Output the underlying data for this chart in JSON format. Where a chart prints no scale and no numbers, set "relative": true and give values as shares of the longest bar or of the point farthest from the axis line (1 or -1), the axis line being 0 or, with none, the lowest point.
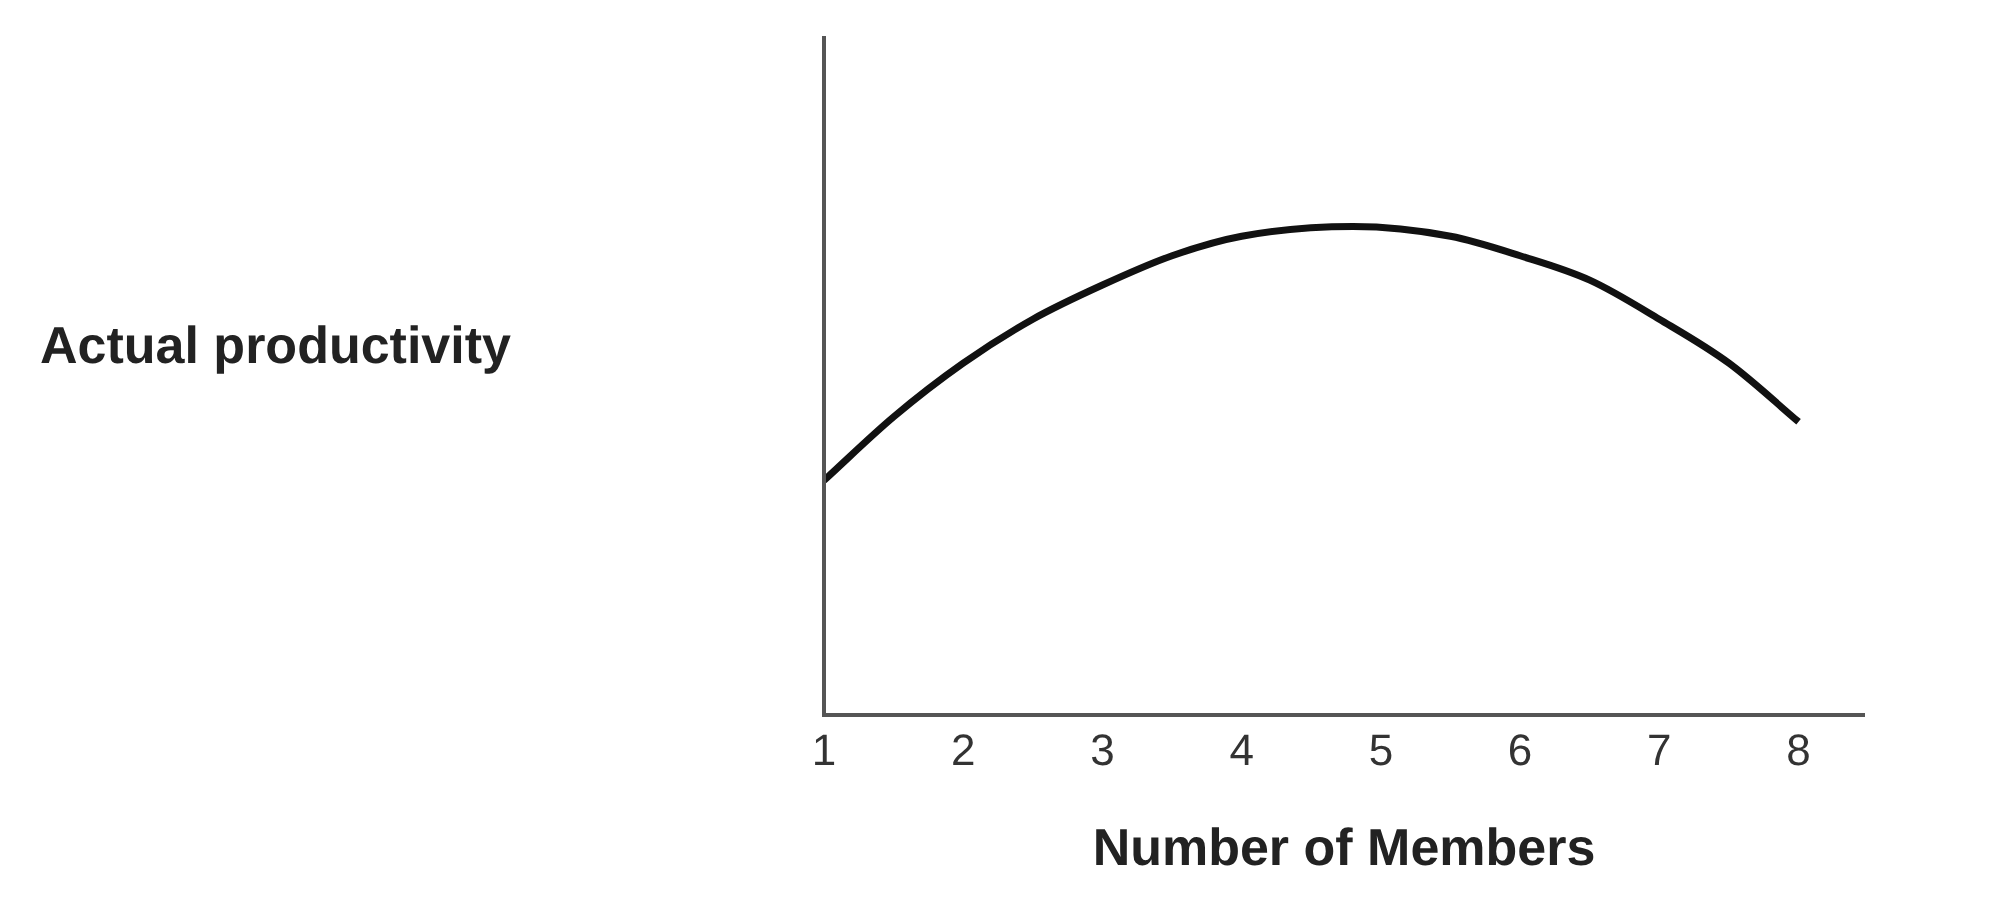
{
  "chart_data": {
    "type": "line",
    "relative": true,
    "xlabel": "Number of Members",
    "annotations": [
      "Actual productivity"
    ],
    "x": [
      1,
      1.5,
      2,
      2.5,
      3,
      3.5,
      4,
      4.8,
      5.5,
      6,
      6.5,
      7,
      7.5,
      8
    ],
    "values": [
      0.48,
      0.61,
      0.72,
      0.81,
      0.88,
      0.94,
      0.98,
      1,
      0.98,
      0.94,
      0.89,
      0.81,
      0.72,
      0.6
    ],
    "color": "#111111",
    "marker": "none",
    "xlim": [
      1,
      8.47
    ],
    "xticks": [
      1,
      2,
      3,
      4,
      5,
      6,
      7,
      8
    ]
  }
}
